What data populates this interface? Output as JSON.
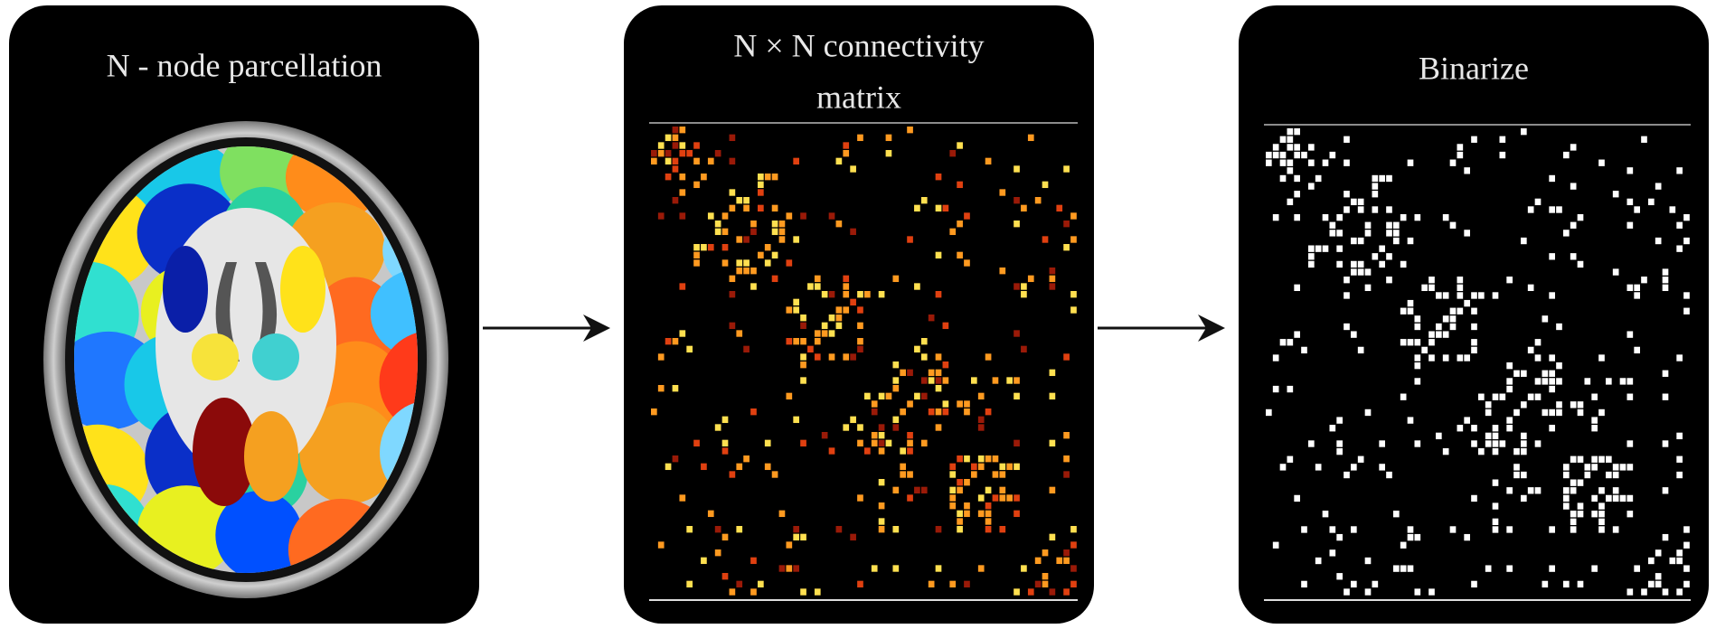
{
  "panels": [
    {
      "title": "N - node parcellation"
    },
    {
      "title_line1": "N × N  connectivity",
      "title_line2": "matrix"
    },
    {
      "title": "Binarize"
    }
  ]
}
